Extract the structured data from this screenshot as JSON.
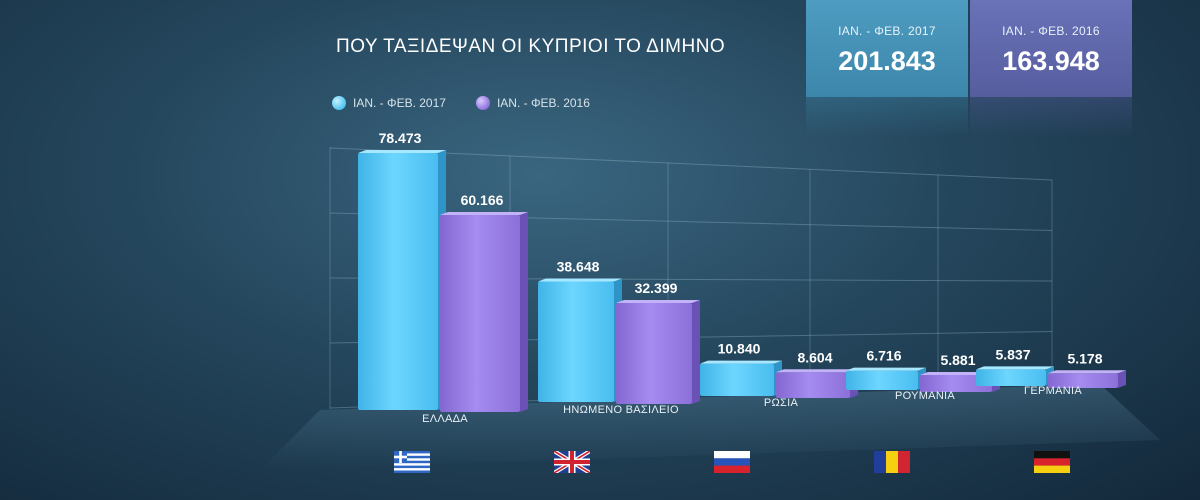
{
  "chart_data": {
    "type": "bar",
    "title": "ΠΟΥ ΤΑΞΙΔΕΨΑΝ ΟΙ ΚΥΠΡΙΟΙ ΤΟ ΔΙΜΗΝΟ",
    "categories": [
      "ΕΛΛΑΔΑ",
      "ΗΝΩΜΕΝΟ ΒΑΣΙΛΕΙΟ",
      "ΡΩΣΙΑ",
      "ΡΟΥΜΑΝΙΑ",
      "ΓΕΡΜΑΝΙΑ"
    ],
    "series": [
      {
        "name": "ΙΑΝ. - ΦΕΒ. 2017",
        "values": [
          78473,
          38648,
          10840,
          6716,
          5837
        ],
        "labels": [
          "78.473",
          "38.648",
          "10.840",
          "6.716",
          "5.837"
        ],
        "color": "#52c8f5"
      },
      {
        "name": "ΙΑΝ. - ΦΕΒ. 2016",
        "values": [
          60166,
          32399,
          8604,
          5881,
          5178
        ],
        "labels": [
          "60.166",
          "32.399",
          "8.604",
          "5.881",
          "5.178"
        ],
        "color": "#9479e0"
      }
    ],
    "ylim": [
      0,
      80000
    ],
    "grid": true,
    "legend": "top-left"
  },
  "summary": [
    {
      "period": "ΙΑΝ. - ΦΕΒ. 2017",
      "total": "201.843",
      "color": "#4a96bb"
    },
    {
      "period": "ΙΑΝ. - ΦΕΒ. 2016",
      "total": "163.948",
      "color": "#636bb0"
    }
  ],
  "flags": [
    {
      "icon": "greece-flag-icon"
    },
    {
      "icon": "uk-flag-icon"
    },
    {
      "icon": "russia-flag-icon"
    },
    {
      "icon": "romania-flag-icon"
    },
    {
      "icon": "germany-flag-icon"
    }
  ]
}
